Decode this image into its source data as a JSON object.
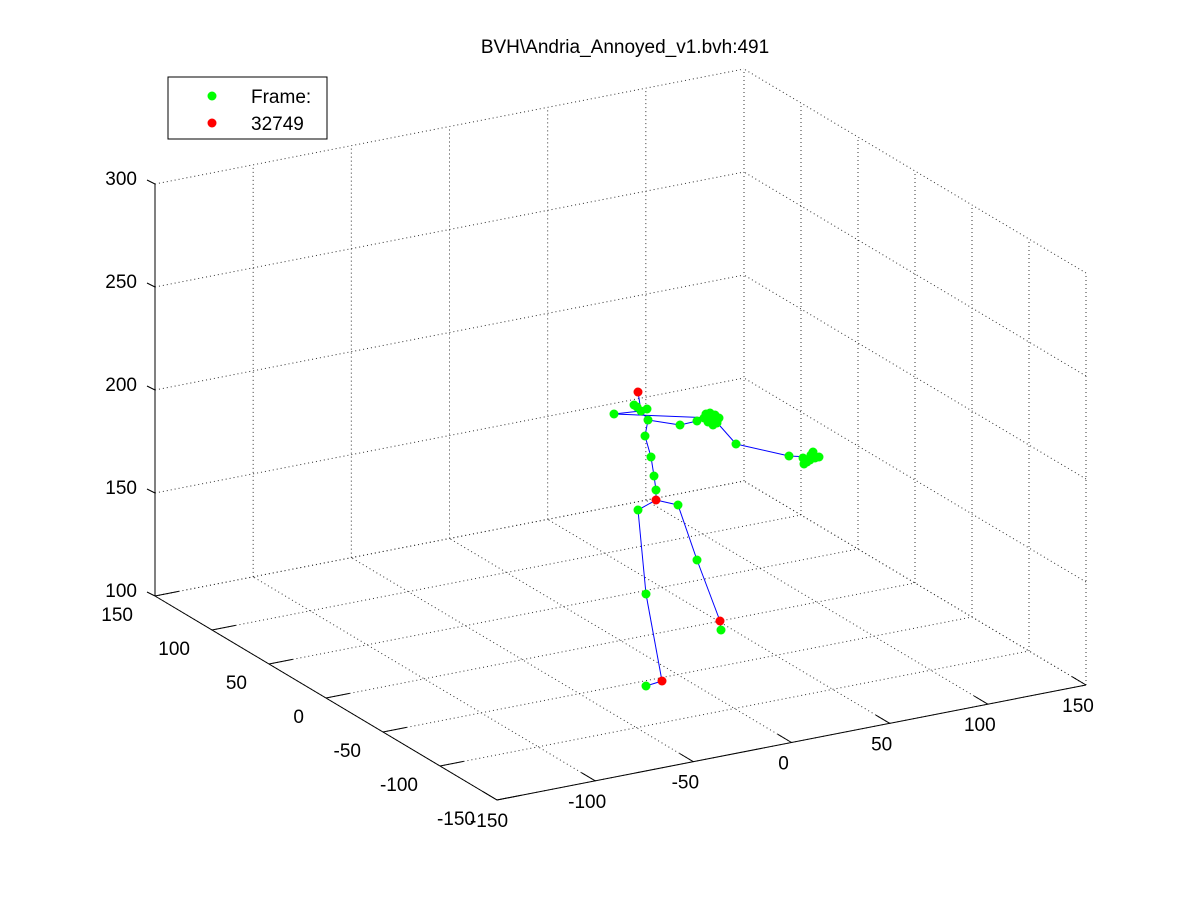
{
  "chart_data": {
    "type": "scatter",
    "title": "BVH\\Andria_Annoyed_v1.bvh:491",
    "xlabel": "",
    "ylabel": "",
    "zlabel": "",
    "grid": true,
    "legend_position": "top-left",
    "legend": [
      {
        "label": "Frame:",
        "color": "#00ff00"
      },
      {
        "label": "32749",
        "color": "#ff0000"
      }
    ],
    "axes": {
      "x": {
        "range": [
          -150,
          150
        ],
        "ticks": [
          "-150",
          "-100",
          "-50",
          "0",
          "50",
          "100",
          "150"
        ]
      },
      "y": {
        "range": [
          -150,
          150
        ],
        "ticks": [
          "-150",
          "-100",
          "-50",
          "0",
          "50",
          "100",
          "150"
        ]
      },
      "z": {
        "range": [
          100,
          300
        ],
        "ticks": [
          "100",
          "150",
          "200",
          "250",
          "300"
        ]
      }
    },
    "colors": {
      "green_markers": "#00ff00",
      "red_markers": "#ff0000",
      "bones": "#0000ff"
    }
  }
}
